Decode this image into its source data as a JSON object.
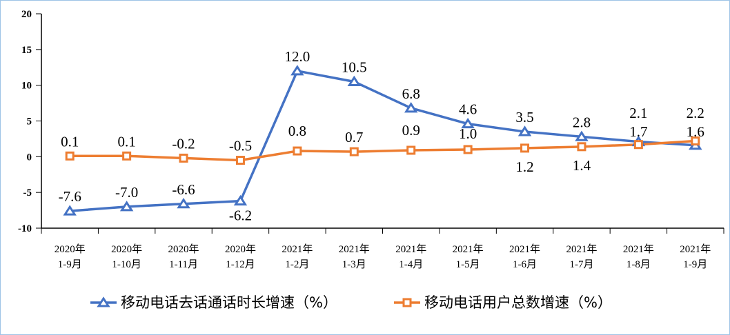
{
  "chart_data": {
    "type": "line",
    "categories": [
      [
        "2020年",
        "1-9月"
      ],
      [
        "2020年",
        "1-10月"
      ],
      [
        "2020年",
        "1-11月"
      ],
      [
        "2020年",
        "1-12月"
      ],
      [
        "2021年",
        "1-2月"
      ],
      [
        "2021年",
        "1-3月"
      ],
      [
        "2021年",
        "1-4月"
      ],
      [
        "2021年",
        "1-5月"
      ],
      [
        "2021年",
        "1-6月"
      ],
      [
        "2021年",
        "1-7月"
      ],
      [
        "2021年",
        "1-8月"
      ],
      [
        "2021年",
        "1-9月"
      ]
    ],
    "ylim": [
      -10,
      20
    ],
    "yticks": [
      "20",
      "15",
      "10",
      "5",
      "0",
      "-5",
      "-10"
    ],
    "grid": false,
    "legend_position": "bottom",
    "series": [
      {
        "name": "移动电话去话通话时长增速（%）",
        "color": "#4472c4",
        "marker": "triangle",
        "values": [
          -7.6,
          -7.0,
          -6.6,
          -6.2,
          12.0,
          10.5,
          6.8,
          4.6,
          3.5,
          2.8,
          2.1,
          1.6
        ],
        "labels": [
          "-7.6",
          "-7.0",
          "-6.6",
          "-6.2",
          "12.0",
          "10.5",
          "6.8",
          "4.6",
          "3.5",
          "2.8",
          "2.1",
          "1.6"
        ]
      },
      {
        "name": "移动电话用户总数增速（%）",
        "color": "#ed7d31",
        "marker": "square",
        "values": [
          0.1,
          0.1,
          -0.2,
          -0.5,
          0.8,
          0.7,
          0.9,
          1.0,
          1.2,
          1.4,
          1.7,
          2.2
        ],
        "labels": [
          "0.1",
          "0.1",
          "-0.2",
          "-0.5",
          "0.8",
          "0.7",
          "0.9",
          "1.0",
          "1.2",
          "1.4",
          "1.7",
          "2.2"
        ]
      }
    ]
  }
}
